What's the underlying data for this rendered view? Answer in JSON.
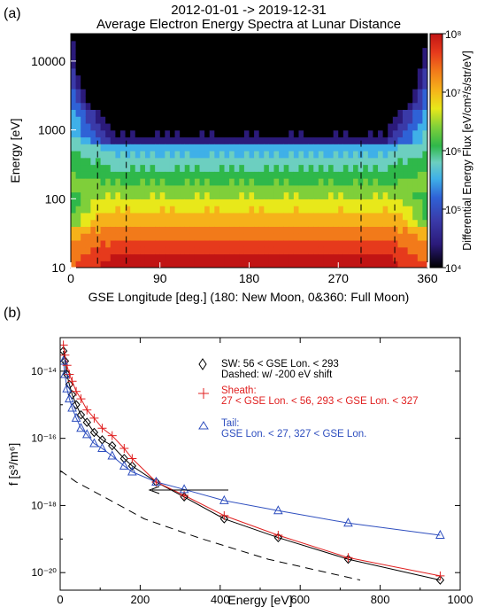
{
  "chart_data": [
    {
      "panel_label": "(a)",
      "type": "heatmap",
      "title": "2012-01-01 -> 2019-12-31",
      "subtitle": "Average Electron Energy Spectra at Lunar Distance",
      "xlabel": "GSE Longitude [deg.] (180: New Moon, 0&360: Full Moon)",
      "ylabel": "Energy [eV]",
      "xlim": [
        0,
        360
      ],
      "ylim": [
        10,
        25000
      ],
      "yscale": "log",
      "x_ticks": [
        "0",
        "90",
        "180",
        "270",
        "360"
      ],
      "y_ticks": [
        "10",
        "100",
        "1000",
        "10000"
      ],
      "colorbar": {
        "label": "Differential Energy Flux [eV/cm²/s/str/eV]",
        "scale": "log",
        "range": [
          10000,
          100000000
        ],
        "tick_labels": [
          "10⁸",
          "10⁷",
          "10⁶",
          "10⁵",
          "10⁴"
        ],
        "colors": [
          "#000000",
          "#2b1a7a",
          "#3a3aa8",
          "#2f62d6",
          "#3fb0e8",
          "#6ccfc0",
          "#2fb84a",
          "#7fcf3a",
          "#e8e81a",
          "#f6b21a",
          "#f27a1a",
          "#e63a1c",
          "#c11414"
        ]
      },
      "boundary_longitudes_deg": [
        27,
        56,
        293,
        327
      ]
    },
    {
      "panel_label": "(b)",
      "type": "scatter",
      "xlabel": "Energy [eV]",
      "ylabel": "f [s³/m⁶]",
      "xlim": [
        0,
        1000
      ],
      "ylim": [
        3e-21,
        1e-13
      ],
      "yscale": "log",
      "x_ticks": [
        "0",
        "200",
        "400",
        "600",
        "800",
        "1000"
      ],
      "y_ticks": [
        "10⁻¹⁴",
        "10⁻¹⁶",
        "10⁻¹⁸",
        "10⁻²⁰"
      ],
      "series": [
        {
          "name": "SW: 56 < GSE Lon. < 293",
          "marker": "diamond",
          "color": "#000000",
          "x": [
            8,
            12,
            17,
            23,
            30,
            40,
            52,
            67,
            85,
            105,
            130,
            160,
            180,
            240,
            310,
            410,
            545,
            720,
            950
          ],
          "y": [
            4e-14,
            2e-14,
            8e-15,
            4e-15,
            2e-15,
            1e-15,
            5e-16,
            3e-16,
            1.5e-16,
            9e-17,
            6e-17,
            2.5e-17,
            1.5e-17,
            5e-18,
            1.8e-18,
            4e-19,
            1.1e-19,
            2.5e-20,
            6e-21
          ]
        },
        {
          "name": "Sheath: 27 < GSE Lon. < 56, 293 < GSE Lon. < 327",
          "marker": "plus",
          "color": "#e02020",
          "x": [
            8,
            12,
            17,
            23,
            30,
            40,
            52,
            67,
            85,
            105,
            130,
            160,
            180,
            240,
            310,
            410,
            545,
            720,
            950
          ],
          "y": [
            6e-14,
            3e-14,
            1.5e-14,
            8e-15,
            5e-15,
            2.5e-15,
            1.5e-15,
            7e-16,
            4e-16,
            2e-16,
            1.2e-16,
            5e-17,
            2.5e-17,
            5e-18,
            2e-18,
            5e-19,
            1.3e-19,
            2.8e-20,
            8e-21
          ]
        },
        {
          "name": "Tail: GSE Lon. < 27, 327 < GSE Lon.",
          "marker": "triangle",
          "color": "#2f4fbf",
          "x": [
            8,
            12,
            17,
            23,
            30,
            40,
            52,
            67,
            85,
            105,
            130,
            160,
            180,
            240,
            310,
            410,
            545,
            720,
            950
          ],
          "y": [
            2e-14,
            8e-15,
            3e-15,
            1.5e-15,
            8e-16,
            4e-16,
            2e-16,
            1.3e-16,
            7e-17,
            5e-17,
            3e-17,
            1.5e-17,
            1e-17,
            5e-18,
            3e-18,
            1.4e-18,
            7e-19,
            3e-19,
            1.3e-19
          ]
        }
      ],
      "dashed_note": "Dashed: w/ -200 eV shift",
      "arrow_note": "leftward arrow (-200 eV shift) from 410 eV to 200 eV at f≈6e-19"
    }
  ]
}
